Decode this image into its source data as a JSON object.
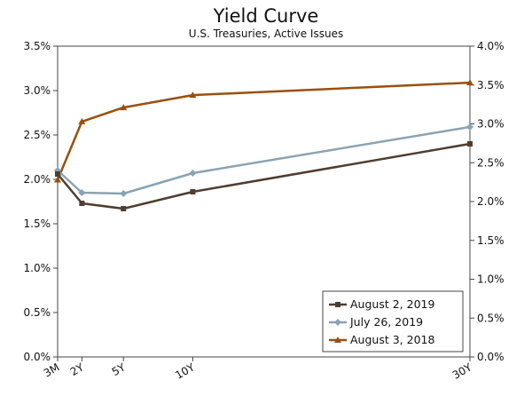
{
  "chart_data": {
    "type": "line",
    "title": "Yield Curve",
    "subtitle": "U.S. Treasuries, Active Issues",
    "xlabel": "",
    "ylabel": "",
    "x_labels": [
      "3M",
      "2Y",
      "5Y",
      "10Y",
      "30Y"
    ],
    "x_years": [
      0.25,
      2,
      5,
      10,
      30
    ],
    "x_range": [
      0.25,
      30
    ],
    "ylim": [
      0.0,
      3.5
    ],
    "y_ticks": [
      0.0,
      0.5,
      1.0,
      1.5,
      2.0,
      2.5,
      3.0,
      3.5
    ],
    "y_tick_labels": [
      "0.0%",
      "0.5%",
      "1.0%",
      "1.5%",
      "2.0%",
      "2.5%",
      "3.0%",
      "3.5%"
    ],
    "ylim_right": [
      0.0,
      4.0
    ],
    "y_ticks_right": [
      0.0,
      0.5,
      1.0,
      1.5,
      2.0,
      2.5,
      3.0,
      3.5,
      4.0
    ],
    "y_tick_labels_right": [
      "0.0%",
      "0.5%",
      "1.0%",
      "1.5%",
      "2.0%",
      "2.5%",
      "3.0%",
      "3.5%",
      "4.0%"
    ],
    "legend_position": "bottom-right",
    "series": [
      {
        "name": "August 2, 2019",
        "axis": "left",
        "color": "#4f3d30",
        "marker": "square",
        "values": [
          2.06,
          1.73,
          1.67,
          1.86,
          2.4
        ]
      },
      {
        "name": "July 26, 2019",
        "axis": "left",
        "color": "#8aa3b3",
        "marker": "diamond",
        "values": [
          2.1,
          1.85,
          1.84,
          2.07,
          2.59
        ]
      },
      {
        "name": "August 3, 2018",
        "axis": "right",
        "color": "#9a4f10",
        "marker": "triangle",
        "values": [
          2.28,
          3.03,
          3.21,
          3.37,
          3.53
        ]
      }
    ]
  }
}
